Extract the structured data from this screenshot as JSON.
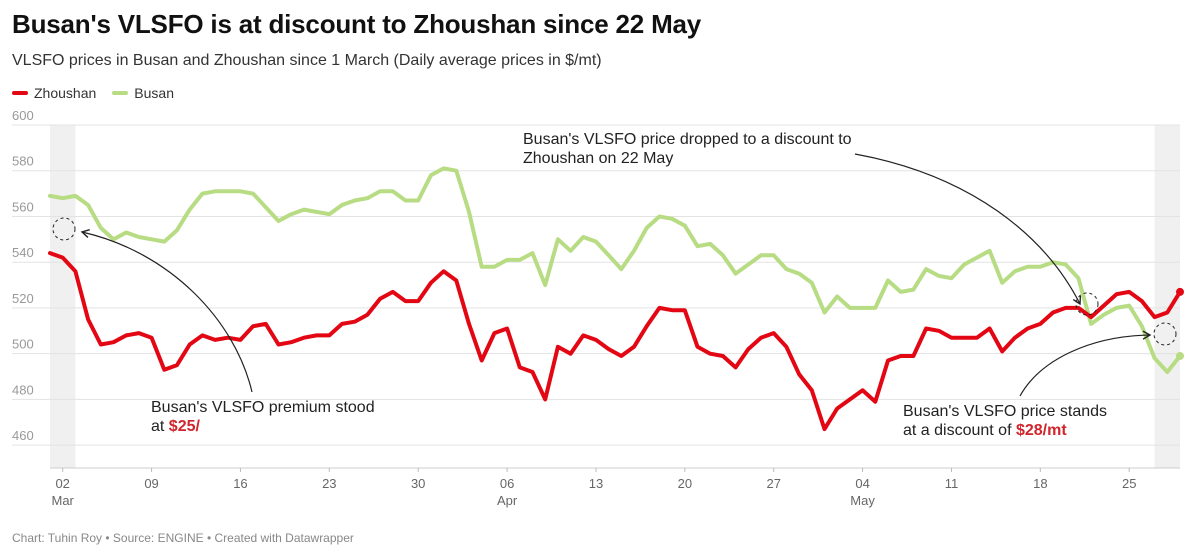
{
  "title": "Busan's VLSFO is at discount to Zhoushan since 22 May",
  "subtitle": "VLSFO prices in Busan and Zhoushan since 1 March (Daily average prices in $/mt)",
  "footer": "Chart: Tuhin Roy • Source: ENGINE • Created with Datawrapper",
  "colors": {
    "zhoushan": "#e30613",
    "busan": "#b7dc83",
    "annotation_highlight": "#d1242b",
    "grid": "#e3e3e3",
    "shade": "#f0f0f0"
  },
  "chart_data": {
    "type": "line",
    "title": "Busan's VLSFO is at discount to Zhoushan since 22 May",
    "subtitle": "VLSFO prices in Busan and Zhoushan since 1 March (Daily average prices in $/mt)",
    "xlabel": "",
    "ylabel": "",
    "ylim": [
      450,
      600
    ],
    "xlim": [
      "2024-03-02",
      "2024-05-28"
    ],
    "yticks": [
      460,
      480,
      500,
      520,
      540,
      560,
      580,
      600
    ],
    "xticks": [
      {
        "date": "2024-03-02",
        "day": "02",
        "month": "Mar"
      },
      {
        "date": "2024-03-09",
        "day": "09",
        "month": ""
      },
      {
        "date": "2024-03-16",
        "day": "16",
        "month": ""
      },
      {
        "date": "2024-03-23",
        "day": "23",
        "month": ""
      },
      {
        "date": "2024-03-30",
        "day": "30",
        "month": ""
      },
      {
        "date": "2024-04-06",
        "day": "06",
        "month": "Apr"
      },
      {
        "date": "2024-04-13",
        "day": "13",
        "month": ""
      },
      {
        "date": "2024-04-20",
        "day": "20",
        "month": ""
      },
      {
        "date": "2024-04-27",
        "day": "27",
        "month": ""
      },
      {
        "date": "2024-05-04",
        "day": "04",
        "month": "May"
      },
      {
        "date": "2024-05-11",
        "day": "11",
        "month": ""
      },
      {
        "date": "2024-05-18",
        "day": "18",
        "month": ""
      },
      {
        "date": "2024-05-25",
        "day": "25",
        "month": ""
      }
    ],
    "grid": true,
    "legend": "top-left",
    "shaded_periods": [
      {
        "start": "2024-03-01",
        "end": "2024-03-03"
      },
      {
        "start": "2024-05-27",
        "end": "2024-05-29"
      }
    ],
    "series": [
      {
        "name": "Zhoushan",
        "points": [
          [
            "2024-03-01",
            544
          ],
          [
            "2024-03-02",
            542
          ],
          [
            "2024-03-03",
            536
          ],
          [
            "2024-03-04",
            515
          ],
          [
            "2024-03-05",
            504
          ],
          [
            "2024-03-06",
            505
          ],
          [
            "2024-03-07",
            508
          ],
          [
            "2024-03-08",
            509
          ],
          [
            "2024-03-09",
            507
          ],
          [
            "2024-03-10",
            493
          ],
          [
            "2024-03-11",
            495
          ],
          [
            "2024-03-12",
            504
          ],
          [
            "2024-03-13",
            508
          ],
          [
            "2024-03-14",
            506
          ],
          [
            "2024-03-15",
            507
          ],
          [
            "2024-03-16",
            506
          ],
          [
            "2024-03-17",
            512
          ],
          [
            "2024-03-18",
            513
          ],
          [
            "2024-03-19",
            504
          ],
          [
            "2024-03-20",
            505
          ],
          [
            "2024-03-21",
            507
          ],
          [
            "2024-03-22",
            508
          ],
          [
            "2024-03-23",
            508
          ],
          [
            "2024-03-24",
            513
          ],
          [
            "2024-03-25",
            514
          ],
          [
            "2024-03-26",
            517
          ],
          [
            "2024-03-27",
            524
          ],
          [
            "2024-03-28",
            527
          ],
          [
            "2024-03-29",
            523
          ],
          [
            "2024-03-30",
            523
          ],
          [
            "2024-03-31",
            531
          ],
          [
            "2024-04-01",
            536
          ],
          [
            "2024-04-02",
            532
          ],
          [
            "2024-04-03",
            513
          ],
          [
            "2024-04-04",
            497
          ],
          [
            "2024-04-05",
            509
          ],
          [
            "2024-04-06",
            511
          ],
          [
            "2024-04-07",
            494
          ],
          [
            "2024-04-08",
            492
          ],
          [
            "2024-04-09",
            480
          ],
          [
            "2024-04-10",
            503
          ],
          [
            "2024-04-11",
            500
          ],
          [
            "2024-04-12",
            508
          ],
          [
            "2024-04-13",
            506
          ],
          [
            "2024-04-14",
            502
          ],
          [
            "2024-04-15",
            499
          ],
          [
            "2024-04-16",
            503
          ],
          [
            "2024-04-17",
            512
          ],
          [
            "2024-04-18",
            520
          ],
          [
            "2024-04-19",
            519
          ],
          [
            "2024-04-20",
            519
          ],
          [
            "2024-04-21",
            503
          ],
          [
            "2024-04-22",
            500
          ],
          [
            "2024-04-23",
            499
          ],
          [
            "2024-04-24",
            494
          ],
          [
            "2024-04-25",
            502
          ],
          [
            "2024-04-26",
            507
          ],
          [
            "2024-04-27",
            509
          ],
          [
            "2024-04-28",
            503
          ],
          [
            "2024-04-29",
            491
          ],
          [
            "2024-04-30",
            484
          ],
          [
            "2024-05-01",
            467
          ],
          [
            "2024-05-02",
            476
          ],
          [
            "2024-05-03",
            480
          ],
          [
            "2024-05-04",
            484
          ],
          [
            "2024-05-05",
            479
          ],
          [
            "2024-05-06",
            497
          ],
          [
            "2024-05-07",
            499
          ],
          [
            "2024-05-08",
            499
          ],
          [
            "2024-05-09",
            511
          ],
          [
            "2024-05-10",
            510
          ],
          [
            "2024-05-11",
            507
          ],
          [
            "2024-05-12",
            507
          ],
          [
            "2024-05-13",
            507
          ],
          [
            "2024-05-14",
            511
          ],
          [
            "2024-05-15",
            501
          ],
          [
            "2024-05-16",
            507
          ],
          [
            "2024-05-17",
            511
          ],
          [
            "2024-05-18",
            513
          ],
          [
            "2024-05-19",
            518
          ],
          [
            "2024-05-20",
            520
          ],
          [
            "2024-05-21",
            520
          ],
          [
            "2024-05-22",
            516
          ],
          [
            "2024-05-23",
            521
          ],
          [
            "2024-05-24",
            526
          ],
          [
            "2024-05-25",
            527
          ],
          [
            "2024-05-26",
            523
          ],
          [
            "2024-05-27",
            516
          ],
          [
            "2024-05-28",
            518
          ],
          [
            "2024-05-29",
            527
          ]
        ]
      },
      {
        "name": "Busan",
        "points": [
          [
            "2024-03-01",
            569
          ],
          [
            "2024-03-02",
            568
          ],
          [
            "2024-03-03",
            569
          ],
          [
            "2024-03-04",
            565
          ],
          [
            "2024-03-05",
            555
          ],
          [
            "2024-03-06",
            550
          ],
          [
            "2024-03-07",
            553
          ],
          [
            "2024-03-08",
            551
          ],
          [
            "2024-03-09",
            550
          ],
          [
            "2024-03-10",
            549
          ],
          [
            "2024-03-11",
            554
          ],
          [
            "2024-03-12",
            563
          ],
          [
            "2024-03-13",
            570
          ],
          [
            "2024-03-14",
            571
          ],
          [
            "2024-03-15",
            571
          ],
          [
            "2024-03-16",
            571
          ],
          [
            "2024-03-17",
            570
          ],
          [
            "2024-03-18",
            564
          ],
          [
            "2024-03-19",
            558
          ],
          [
            "2024-03-20",
            561
          ],
          [
            "2024-03-21",
            563
          ],
          [
            "2024-03-22",
            562
          ],
          [
            "2024-03-23",
            561
          ],
          [
            "2024-03-24",
            565
          ],
          [
            "2024-03-25",
            567
          ],
          [
            "2024-03-26",
            568
          ],
          [
            "2024-03-27",
            571
          ],
          [
            "2024-03-28",
            571
          ],
          [
            "2024-03-29",
            567
          ],
          [
            "2024-03-30",
            567
          ],
          [
            "2024-03-31",
            578
          ],
          [
            "2024-04-01",
            581
          ],
          [
            "2024-04-02",
            580
          ],
          [
            "2024-04-03",
            562
          ],
          [
            "2024-04-04",
            538
          ],
          [
            "2024-04-05",
            538
          ],
          [
            "2024-04-06",
            541
          ],
          [
            "2024-04-07",
            541
          ],
          [
            "2024-04-08",
            544
          ],
          [
            "2024-04-09",
            530
          ],
          [
            "2024-04-10",
            550
          ],
          [
            "2024-04-11",
            545
          ],
          [
            "2024-04-12",
            551
          ],
          [
            "2024-04-13",
            549
          ],
          [
            "2024-04-14",
            543
          ],
          [
            "2024-04-15",
            537
          ],
          [
            "2024-04-16",
            545
          ],
          [
            "2024-04-17",
            555
          ],
          [
            "2024-04-18",
            560
          ],
          [
            "2024-04-19",
            559
          ],
          [
            "2024-04-20",
            556
          ],
          [
            "2024-04-21",
            547
          ],
          [
            "2024-04-22",
            548
          ],
          [
            "2024-04-23",
            543
          ],
          [
            "2024-04-24",
            535
          ],
          [
            "2024-04-25",
            539
          ],
          [
            "2024-04-26",
            543
          ],
          [
            "2024-04-27",
            543
          ],
          [
            "2024-04-28",
            537
          ],
          [
            "2024-04-29",
            535
          ],
          [
            "2024-04-30",
            531
          ],
          [
            "2024-05-01",
            518
          ],
          [
            "2024-05-02",
            525
          ],
          [
            "2024-05-03",
            520
          ],
          [
            "2024-05-04",
            520
          ],
          [
            "2024-05-05",
            520
          ],
          [
            "2024-05-06",
            532
          ],
          [
            "2024-05-07",
            527
          ],
          [
            "2024-05-08",
            528
          ],
          [
            "2024-05-09",
            537
          ],
          [
            "2024-05-10",
            534
          ],
          [
            "2024-05-11",
            533
          ],
          [
            "2024-05-12",
            539
          ],
          [
            "2024-05-13",
            542
          ],
          [
            "2024-05-14",
            545
          ],
          [
            "2024-05-15",
            531
          ],
          [
            "2024-05-16",
            536
          ],
          [
            "2024-05-17",
            538
          ],
          [
            "2024-05-18",
            538
          ],
          [
            "2024-05-19",
            540
          ],
          [
            "2024-05-20",
            539
          ],
          [
            "2024-05-21",
            533
          ],
          [
            "2024-05-22",
            513
          ],
          [
            "2024-05-23",
            517
          ],
          [
            "2024-05-24",
            520
          ],
          [
            "2024-05-25",
            521
          ],
          [
            "2024-05-26",
            512
          ],
          [
            "2024-05-27",
            498
          ],
          [
            "2024-05-28",
            492
          ],
          [
            "2024-05-29",
            499
          ]
        ]
      }
    ],
    "annotations": [
      {
        "id": "premium",
        "lines": [
          {
            "text": "Busan's VLSFO premium stood"
          },
          {
            "text": "at ",
            "highlight": "$25/"
          }
        ],
        "target": {
          "date": "2024-03-02",
          "value": 555
        }
      },
      {
        "id": "dropped",
        "lines": [
          {
            "text": "Busan's VLSFO price dropped to a discount to"
          },
          {
            "text": "Zhoushan on 22 May"
          }
        ],
        "target": {
          "date": "2024-05-22",
          "value": 518
        }
      },
      {
        "id": "discount",
        "lines": [
          {
            "text": "Busan's VLSFO price stands"
          },
          {
            "text": "at a discount of ",
            "highlight": "$28/mt"
          }
        ],
        "target": {
          "date": "2024-05-28",
          "value": 508
        }
      }
    ]
  }
}
